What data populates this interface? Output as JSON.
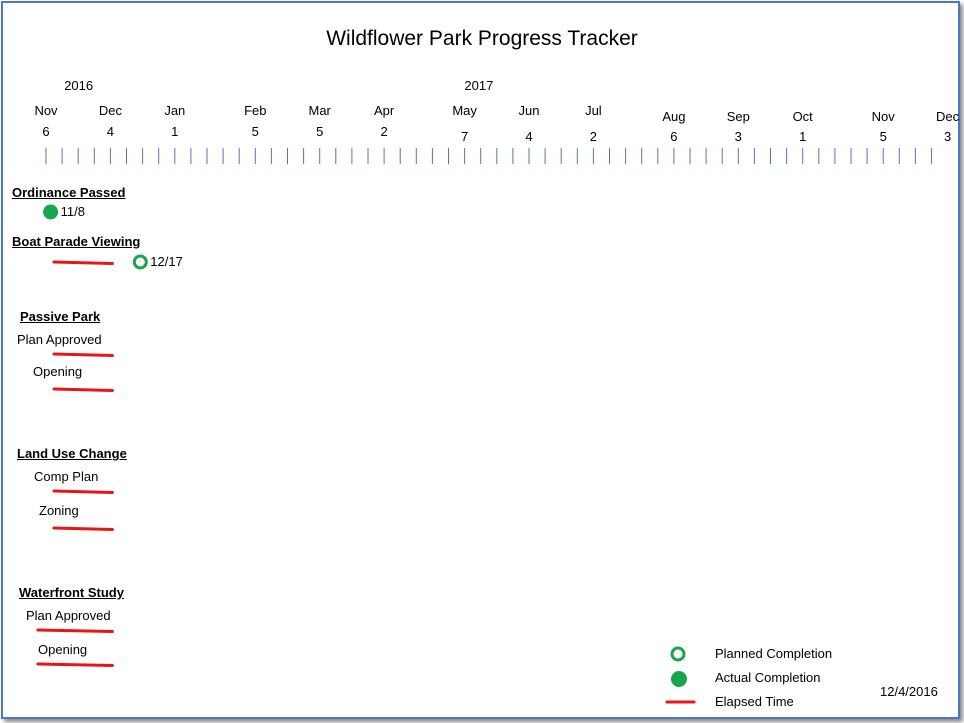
{
  "title": "Wildflower Park Progress Tracker",
  "years": [
    {
      "label": "2016",
      "date": "2016-11-20"
    },
    {
      "label": "2017",
      "date": "2017-05-13"
    }
  ],
  "months": [
    {
      "month": "Nov",
      "day": "6",
      "date": "2016-11-06"
    },
    {
      "month": "Dec",
      "day": "4",
      "date": "2016-12-04"
    },
    {
      "month": "Jan",
      "day": "1",
      "date": "2017-01-01"
    },
    {
      "month": "Feb",
      "day": "5",
      "date": "2017-02-05"
    },
    {
      "month": "Mar",
      "day": "5",
      "date": "2017-03-05"
    },
    {
      "month": "Apr",
      "day": "2",
      "date": "2017-04-02"
    },
    {
      "month": "May",
      "day": "7",
      "date": "2017-05-07"
    },
    {
      "month": "Jun",
      "day": "4",
      "date": "2017-06-04"
    },
    {
      "month": "Jul",
      "day": "2",
      "date": "2017-07-02"
    },
    {
      "month": "Aug",
      "day": "6",
      "date": "2017-08-06"
    },
    {
      "month": "Sep",
      "day": "3",
      "date": "2017-09-03"
    },
    {
      "month": "Oct",
      "day": "1",
      "date": "2017-10-01"
    },
    {
      "month": "Nov",
      "day": "5",
      "date": "2017-11-05"
    },
    {
      "month": "Dec",
      "day": "3",
      "date": "2017-12-03"
    }
  ],
  "tick_interval_days": 7,
  "sections": [
    {
      "heading": "Ordinance Passed",
      "items": [
        {
          "label": "",
          "elapsed": null,
          "marker": {
            "type": "actual",
            "date": "2016-11-08",
            "text": "11/8"
          }
        }
      ]
    },
    {
      "heading": "Boat Parade  Viewing",
      "items": [
        {
          "label": "",
          "elapsed": [
            "2016-11-06",
            "2016-12-04"
          ],
          "marker": {
            "type": "planned",
            "date": "2016-12-17",
            "text": "12/17"
          }
        }
      ]
    },
    {
      "heading": "Passive Park",
      "items": [
        {
          "label": "Plan Approved",
          "elapsed": [
            "2016-11-06",
            "2016-12-04"
          ],
          "marker": null
        },
        {
          "label": "Opening",
          "elapsed": [
            "2016-11-06",
            "2016-12-04"
          ],
          "marker": null
        }
      ]
    },
    {
      "heading": "Land Use Change",
      "items": [
        {
          "label": "Comp Plan",
          "elapsed": [
            "2016-11-06",
            "2016-12-04"
          ],
          "marker": null
        },
        {
          "label": "Zoning",
          "elapsed": [
            "2016-11-06",
            "2016-12-04"
          ],
          "marker": null
        }
      ]
    },
    {
      "heading": "Waterfront Study",
      "items": [
        {
          "label": "Plan Approved",
          "elapsed": [
            "2016-10-30",
            "2016-12-04"
          ],
          "marker": null
        },
        {
          "label": "Opening",
          "elapsed": [
            "2016-10-30",
            "2016-12-04"
          ],
          "marker": null
        }
      ]
    }
  ],
  "legend": {
    "planned": "Planned Completion",
    "actual": "Actual Completion",
    "elapsed": "Elapsed Time"
  },
  "status_date": "12/4/2016",
  "colors": {
    "frame": "#4a78c2",
    "tick": "#4a78c2",
    "marker": "#17a64b",
    "elapsed": "#e8161b"
  }
}
